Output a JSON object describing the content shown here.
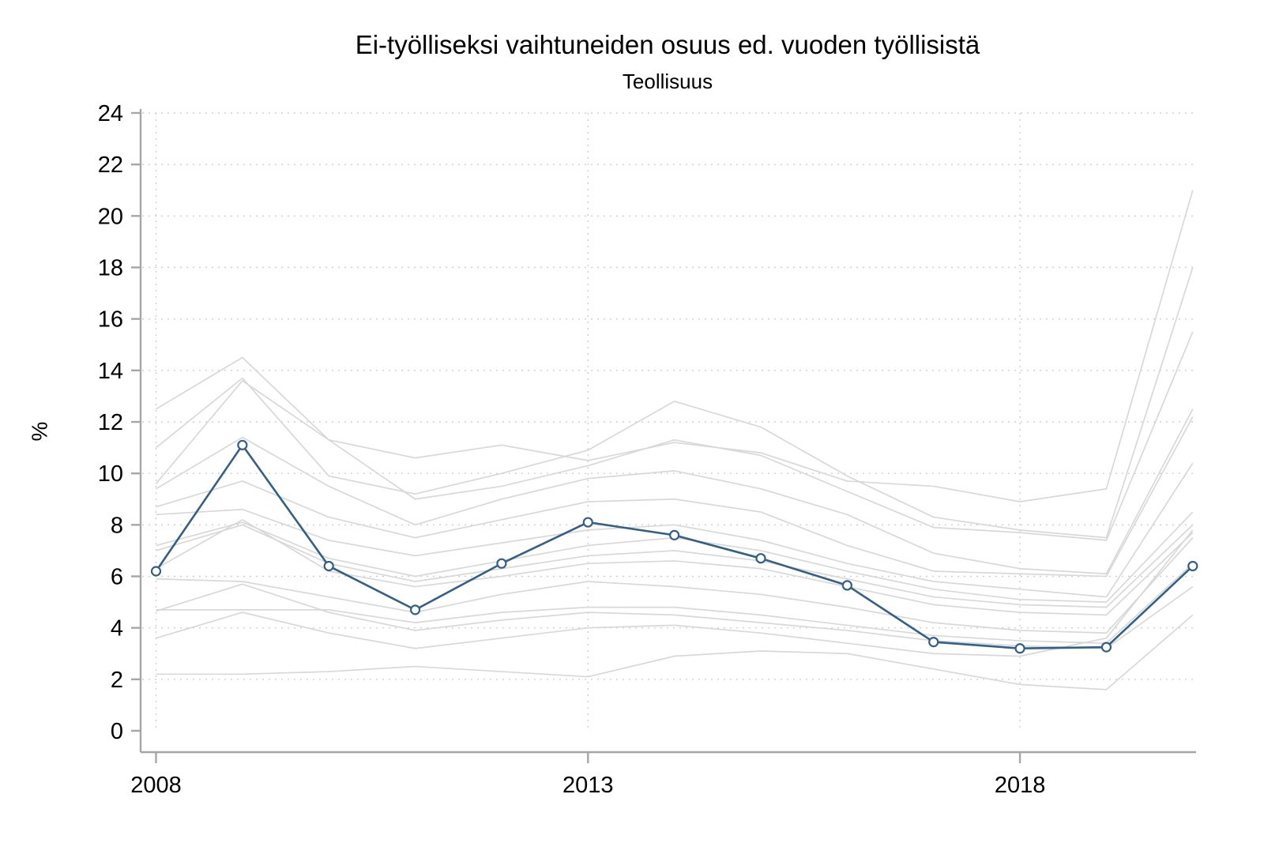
{
  "chart_data": {
    "type": "line",
    "title": "Ei-työlliseksi vaihtuneiden osuus ed. vuoden työllisistä",
    "subtitle": "Teollisuus",
    "xlabel": "",
    "ylabel": "%",
    "ylim": [
      0,
      24
    ],
    "y_ticks": [
      0,
      2,
      4,
      6,
      8,
      10,
      12,
      14,
      16,
      18,
      20,
      22,
      24
    ],
    "x": [
      2008,
      2009,
      2010,
      2011,
      2012,
      2013,
      2014,
      2015,
      2016,
      2017,
      2018,
      2019,
      2020
    ],
    "x_ticks": [
      2008,
      2013,
      2018
    ],
    "grid": true,
    "legend": "none",
    "highlight_color": "#335f88",
    "background_line_color": "#d8d8d8",
    "grid_color": "#cfcfcf",
    "axis_color": "#a6a6a6",
    "series": [
      {
        "name": "tausta-1",
        "highlight": false,
        "values": [
          12.5,
          14.5,
          11.3,
          10.6,
          11.1,
          10.5,
          11.2,
          10.8,
          9.7,
          9.5,
          8.9,
          9.4,
          21.0
        ]
      },
      {
        "name": "tausta-2",
        "highlight": false,
        "values": [
          11.0,
          13.7,
          9.9,
          9.2,
          10.0,
          10.9,
          12.8,
          11.8,
          9.9,
          8.3,
          7.8,
          7.5,
          18.0
        ]
      },
      {
        "name": "tausta-3",
        "highlight": false,
        "values": [
          9.6,
          13.6,
          11.3,
          9.0,
          9.5,
          10.3,
          11.3,
          10.7,
          9.3,
          7.9,
          7.7,
          7.4,
          15.5
        ]
      },
      {
        "name": "tausta-4",
        "highlight": false,
        "values": [
          9.4,
          11.4,
          9.5,
          8.0,
          9.0,
          9.8,
          10.1,
          9.4,
          8.4,
          6.9,
          6.3,
          6.1,
          12.5
        ]
      },
      {
        "name": "tausta-5",
        "highlight": false,
        "values": [
          8.7,
          9.7,
          8.3,
          7.5,
          8.2,
          8.9,
          9.0,
          8.5,
          7.2,
          6.2,
          6.1,
          6.0,
          12.2
        ]
      },
      {
        "name": "tausta-6",
        "highlight": false,
        "values": [
          8.4,
          8.6,
          7.4,
          6.8,
          7.3,
          7.8,
          8.0,
          7.4,
          6.5,
          5.8,
          5.5,
          5.2,
          10.4
        ]
      },
      {
        "name": "tausta-7",
        "highlight": false,
        "values": [
          7.2,
          8.1,
          6.7,
          6.0,
          6.6,
          7.2,
          7.5,
          7.0,
          6.2,
          5.5,
          5.1,
          5.0,
          8.5
        ]
      },
      {
        "name": "tausta-8",
        "highlight": false,
        "values": [
          7.0,
          8.0,
          6.5,
          5.8,
          6.3,
          6.8,
          7.0,
          6.6,
          5.9,
          5.2,
          4.9,
          4.8,
          8.0
        ]
      },
      {
        "name": "tausta-9",
        "highlight": false,
        "values": [
          6.3,
          8.2,
          6.2,
          5.6,
          6.0,
          6.5,
          6.6,
          6.3,
          5.6,
          4.9,
          4.6,
          4.5,
          7.7
        ]
      },
      {
        "name": "tausta-10",
        "highlight": false,
        "values": [
          5.9,
          5.8,
          5.2,
          4.6,
          5.3,
          5.8,
          5.6,
          5.3,
          4.8,
          4.2,
          3.9,
          3.8,
          7.5
        ]
      },
      {
        "name": "tausta-11",
        "highlight": false,
        "values": [
          4.7,
          4.7,
          4.7,
          4.2,
          4.6,
          4.8,
          4.8,
          4.5,
          4.1,
          3.7,
          3.5,
          3.4,
          6.5
        ]
      },
      {
        "name": "tausta-12",
        "highlight": false,
        "values": [
          4.65,
          5.7,
          4.6,
          3.9,
          4.3,
          4.6,
          4.5,
          4.2,
          3.9,
          3.5,
          3.3,
          3.2,
          5.6
        ]
      },
      {
        "name": "tausta-13",
        "highlight": false,
        "values": [
          3.6,
          4.6,
          3.8,
          3.2,
          3.6,
          4.0,
          4.1,
          3.8,
          3.4,
          3.0,
          2.9,
          3.6,
          7.8
        ]
      },
      {
        "name": "tausta-14",
        "highlight": false,
        "values": [
          2.2,
          2.2,
          2.3,
          2.5,
          2.3,
          2.1,
          2.9,
          3.1,
          3.0,
          2.4,
          1.8,
          1.6,
          4.5
        ]
      },
      {
        "name": "Teollisuus",
        "highlight": true,
        "values": [
          6.2,
          11.1,
          6.4,
          4.7,
          6.5,
          8.1,
          7.6,
          6.7,
          5.65,
          3.45,
          3.2,
          3.25,
          6.4
        ]
      }
    ]
  }
}
